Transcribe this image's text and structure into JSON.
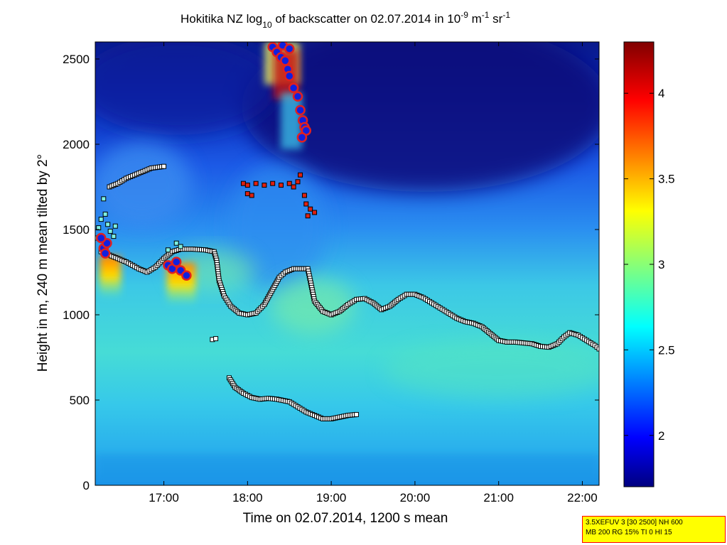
{
  "chart_data": {
    "type": "heatmap",
    "title": {
      "pre": "Hokitika NZ log",
      "sub": "10",
      "mid": " of backscatter on 02.07.2014 in 10",
      "sup1": "-9",
      "mid2": " m",
      "sup2": "-1",
      "mid3": " sr",
      "sup3": "-1"
    },
    "xlabel": "Time on 02.07.2014, 1200 s mean",
    "ylabel": "Height in m, 240 m mean tilted by 2°",
    "xlim_hours": [
      16.18,
      22.2
    ],
    "ylim": [
      0,
      2600
    ],
    "xticks": [
      {
        "value": 17,
        "label": "17:00"
      },
      {
        "value": 18,
        "label": "18:00"
      },
      {
        "value": 19,
        "label": "19:00"
      },
      {
        "value": 20,
        "label": "20:00"
      },
      {
        "value": 21,
        "label": "21:00"
      },
      {
        "value": 22,
        "label": "22:00"
      }
    ],
    "yticks": [
      {
        "value": 0,
        "label": "0"
      },
      {
        "value": 500,
        "label": "500"
      },
      {
        "value": 1000,
        "label": "1000"
      },
      {
        "value": 1500,
        "label": "1500"
      },
      {
        "value": 2000,
        "label": "2000"
      },
      {
        "value": 2500,
        "label": "2500"
      }
    ],
    "colorbar": {
      "range": [
        1.7,
        4.3
      ],
      "colormap": "jet",
      "ticks": [
        {
          "value": 2,
          "label": "2"
        },
        {
          "value": 2.5,
          "label": "2.5"
        },
        {
          "value": 3,
          "label": "3"
        },
        {
          "value": 3.5,
          "label": "3.5"
        },
        {
          "value": 4,
          "label": "4"
        }
      ]
    },
    "grid": false,
    "boundary_layer_black_squares": [
      [
        16.25,
        1370
      ],
      [
        16.4,
        1340
      ],
      [
        16.55,
        1310
      ],
      [
        16.7,
        1270
      ],
      [
        16.8,
        1250
      ],
      [
        16.9,
        1280
      ],
      [
        17.0,
        1330
      ],
      [
        17.1,
        1370
      ],
      [
        17.2,
        1385
      ],
      [
        17.35,
        1385
      ],
      [
        17.5,
        1380
      ],
      [
        17.6,
        1370
      ],
      [
        17.63,
        1320
      ],
      [
        17.66,
        1200
      ],
      [
        17.72,
        1110
      ],
      [
        17.8,
        1050
      ],
      [
        17.9,
        1010
      ],
      [
        18.0,
        1000
      ],
      [
        18.1,
        1010
      ],
      [
        18.2,
        1060
      ],
      [
        18.3,
        1150
      ],
      [
        18.38,
        1220
      ],
      [
        18.45,
        1250
      ],
      [
        18.55,
        1270
      ],
      [
        18.65,
        1270
      ],
      [
        18.72,
        1270
      ],
      [
        18.75,
        1200
      ],
      [
        18.8,
        1080
      ],
      [
        18.9,
        1020
      ],
      [
        19.0,
        1000
      ],
      [
        19.1,
        1020
      ],
      [
        19.2,
        1060
      ],
      [
        19.3,
        1090
      ],
      [
        19.4,
        1095
      ],
      [
        19.5,
        1070
      ],
      [
        19.6,
        1030
      ],
      [
        19.7,
        1050
      ],
      [
        19.8,
        1090
      ],
      [
        19.9,
        1120
      ],
      [
        20.0,
        1120
      ],
      [
        20.1,
        1100
      ],
      [
        20.2,
        1070
      ],
      [
        20.3,
        1040
      ],
      [
        20.4,
        1010
      ],
      [
        20.5,
        980
      ],
      [
        20.6,
        960
      ],
      [
        20.7,
        950
      ],
      [
        20.8,
        930
      ],
      [
        20.9,
        890
      ],
      [
        21.0,
        850
      ],
      [
        21.1,
        840
      ],
      [
        21.2,
        840
      ],
      [
        21.3,
        835
      ],
      [
        21.4,
        830
      ],
      [
        21.5,
        815
      ],
      [
        21.6,
        810
      ],
      [
        21.7,
        830
      ],
      [
        21.78,
        870
      ],
      [
        21.85,
        895
      ],
      [
        21.95,
        880
      ],
      [
        22.05,
        850
      ],
      [
        22.15,
        820
      ],
      [
        22.2,
        800
      ]
    ],
    "lower_layer_black_squares": [
      [
        17.78,
        630
      ],
      [
        17.85,
        575
      ],
      [
        17.95,
        540
      ],
      [
        18.05,
        515
      ],
      [
        18.15,
        505
      ],
      [
        18.25,
        510
      ],
      [
        18.35,
        505
      ],
      [
        18.5,
        490
      ],
      [
        18.6,
        460
      ],
      [
        18.7,
        430
      ],
      [
        18.8,
        410
      ],
      [
        18.9,
        390
      ],
      [
        19.0,
        390
      ],
      [
        19.1,
        400
      ],
      [
        19.2,
        410
      ],
      [
        19.3,
        415
      ]
    ],
    "isolated_black_squares": [
      [
        17.58,
        855
      ],
      [
        17.62,
        860
      ]
    ],
    "upper_layer_white_squares": [
      [
        16.35,
        1750
      ],
      [
        16.45,
        1770
      ],
      [
        16.55,
        1800
      ],
      [
        16.7,
        1830
      ],
      [
        16.85,
        1860
      ],
      [
        17.0,
        1870
      ]
    ],
    "cyan_squares": [
      [
        16.2,
        1450
      ],
      [
        16.22,
        1510
      ],
      [
        16.25,
        1560
      ],
      [
        16.28,
        1680
      ],
      [
        16.3,
        1590
      ],
      [
        16.33,
        1530
      ],
      [
        16.36,
        1490
      ],
      [
        16.4,
        1460
      ],
      [
        16.42,
        1520
      ],
      [
        17.05,
        1380
      ],
      [
        17.15,
        1420
      ],
      [
        17.2,
        1400
      ]
    ],
    "cloud_red_squares": [
      [
        17.95,
        1770
      ],
      [
        18.0,
        1760
      ],
      [
        18.1,
        1770
      ],
      [
        18.2,
        1760
      ],
      [
        18.3,
        1770
      ],
      [
        18.4,
        1760
      ],
      [
        18.5,
        1770
      ],
      [
        18.55,
        1750
      ],
      [
        18.6,
        1780
      ],
      [
        18.63,
        1820
      ],
      [
        18.68,
        1700
      ],
      [
        18.7,
        1650
      ],
      [
        18.75,
        1620
      ],
      [
        18.8,
        1600
      ],
      [
        18.72,
        1580
      ],
      [
        18.0,
        1710
      ],
      [
        18.05,
        1700
      ]
    ],
    "cloud_dots_red_blue": [
      [
        16.28,
        1390
      ],
      [
        16.3,
        1360
      ],
      [
        16.32,
        1420
      ],
      [
        16.25,
        1450
      ],
      [
        17.05,
        1290
      ],
      [
        17.1,
        1270
      ],
      [
        17.15,
        1310
      ],
      [
        17.2,
        1260
      ],
      [
        17.27,
        1230
      ],
      [
        18.3,
        2570
      ],
      [
        18.35,
        2540
      ],
      [
        18.4,
        2510
      ],
      [
        18.45,
        2490
      ],
      [
        18.48,
        2440
      ],
      [
        18.5,
        2400
      ],
      [
        18.55,
        2330
      ],
      [
        18.6,
        2280
      ],
      [
        18.63,
        2200
      ],
      [
        18.66,
        2140
      ],
      [
        18.68,
        2100
      ],
      [
        18.7,
        2080
      ],
      [
        18.65,
        2040
      ],
      [
        18.42,
        2580
      ],
      [
        18.5,
        2560
      ]
    ]
  },
  "infobox": {
    "line1": "3.5XEFUV 3 [30 2500] NH 600",
    "line2": "MB 200 RG 15% TI 0 HI 15"
  }
}
